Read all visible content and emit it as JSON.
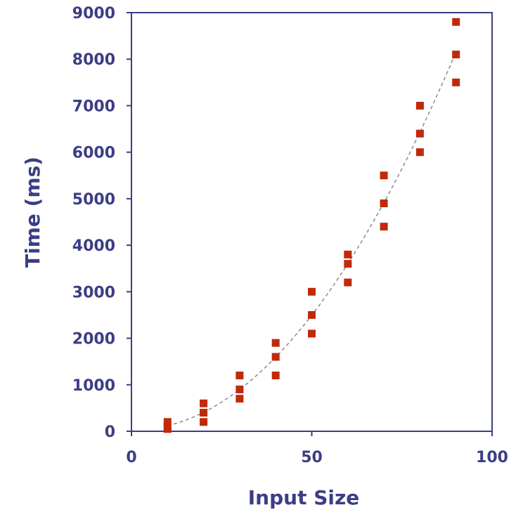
{
  "chart_data": {
    "type": "scatter",
    "title": "",
    "xlabel": "Input Size",
    "ylabel": "Time (ms)",
    "xlim": [
      0,
      100
    ],
    "ylim": [
      0,
      9000
    ],
    "x_ticks": [
      0,
      50,
      100
    ],
    "y_ticks": [
      0,
      1000,
      2000,
      3000,
      4000,
      5000,
      6000,
      7000,
      8000,
      9000
    ],
    "x_tick_labels": [
      "0",
      "50",
      "100"
    ],
    "y_tick_labels": [
      "0",
      "1000",
      "2000",
      "3000",
      "4000",
      "5000",
      "6000",
      "7000",
      "8000",
      "9000"
    ],
    "grid": false,
    "legend": "none",
    "marker": "square",
    "colors": {
      "axis": "#3b3e84",
      "marker": "#c02a0a",
      "trendline": "#8a8a8a"
    },
    "series": [
      {
        "points": [
          [
            10,
            200
          ],
          [
            10,
            100
          ],
          [
            10,
            50
          ],
          [
            20,
            600
          ],
          [
            20,
            400
          ],
          [
            20,
            200
          ],
          [
            30,
            1200
          ],
          [
            30,
            900
          ],
          [
            30,
            700
          ],
          [
            40,
            1900
          ],
          [
            40,
            1600
          ],
          [
            40,
            1200
          ],
          [
            50,
            3000
          ],
          [
            50,
            2500
          ],
          [
            50,
            2100
          ],
          [
            60,
            3800
          ],
          [
            60,
            3600
          ],
          [
            60,
            3200
          ],
          [
            70,
            5500
          ],
          [
            70,
            4900
          ],
          [
            70,
            4400
          ],
          [
            80,
            7000
          ],
          [
            80,
            6400
          ],
          [
            80,
            6000
          ],
          [
            90,
            8800
          ],
          [
            90,
            8100
          ],
          [
            90,
            7500
          ]
        ]
      }
    ],
    "trendline": {
      "style": "dashed",
      "fit": "quadratic",
      "x_range": [
        10,
        90
      ]
    }
  }
}
